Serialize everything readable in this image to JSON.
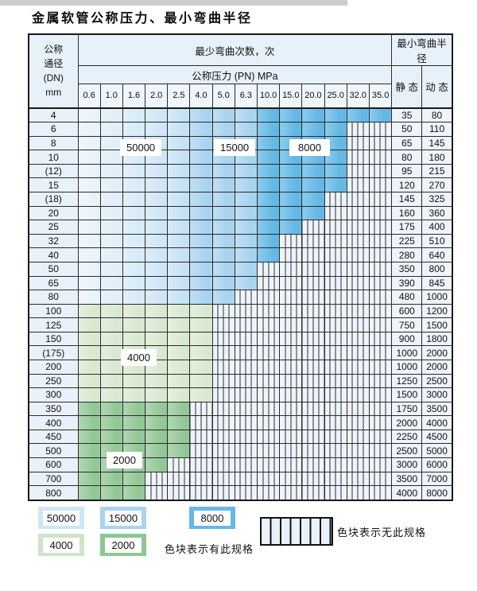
{
  "title": "金属软管公称压力、最小弯曲半径",
  "colors": {
    "blue50000_from": "#e9f3fb",
    "blue50000_to": "#c6e2f5",
    "blue15000": "#a8d4f0",
    "blue8000": "#63b8e6",
    "green4000": "#d9e9d1",
    "green2000": "#92c897",
    "hatch_bg": "#eef4fb",
    "header_bg": "#e7f1fa",
    "grid": "#2b2b2b"
  },
  "table": {
    "header": {
      "dn_label_lines": [
        "公称",
        "通径",
        "(DN)",
        "mm"
      ],
      "cycles_label": "最少弯曲次数，次",
      "pressure_label": "公称压力 (PN) MPa",
      "radius_label": "最小弯曲半径",
      "static_label": "静 态",
      "dynamic_label": "动 态",
      "pressures": [
        "0.6",
        "1.0",
        "1.6",
        "2.0",
        "2.5",
        "4.0",
        "5.0",
        "6.3",
        "10.0",
        "15.0",
        "20.0",
        "25.0",
        "32.0",
        "35.0"
      ]
    },
    "zone_columns": {
      "cycles_50000": [
        "0.6",
        "2.5"
      ],
      "cycles_15000": [
        "4.0",
        "6.3"
      ],
      "cycles_8000": [
        "10.0",
        "35.0"
      ]
    },
    "rows": [
      {
        "dn": "4",
        "max": "35.0",
        "palette": "blue",
        "static": "35",
        "dynamic": "80"
      },
      {
        "dn": "6",
        "max": "25.0",
        "palette": "blue",
        "static": "50",
        "dynamic": "110"
      },
      {
        "dn": "8",
        "max": "25.0",
        "palette": "blue",
        "static": "65",
        "dynamic": "145"
      },
      {
        "dn": "10",
        "max": "25.0",
        "palette": "blue",
        "static": "80",
        "dynamic": "180"
      },
      {
        "dn": "(12)",
        "max": "25.0",
        "palette": "blue",
        "static": "95",
        "dynamic": "215"
      },
      {
        "dn": "15",
        "max": "25.0",
        "palette": "blue",
        "static": "120",
        "dynamic": "270"
      },
      {
        "dn": "(18)",
        "max": "20.0",
        "palette": "blue",
        "static": "145",
        "dynamic": "325"
      },
      {
        "dn": "20",
        "max": "20.0",
        "palette": "blue",
        "static": "160",
        "dynamic": "360"
      },
      {
        "dn": "25",
        "max": "15.0",
        "palette": "blue",
        "static": "175",
        "dynamic": "400"
      },
      {
        "dn": "32",
        "max": "10.0",
        "palette": "blue",
        "static": "225",
        "dynamic": "510"
      },
      {
        "dn": "40",
        "max": "10.0",
        "palette": "blue",
        "static": "280",
        "dynamic": "640"
      },
      {
        "dn": "50",
        "max": "6.3",
        "palette": "blue",
        "static": "350",
        "dynamic": "800"
      },
      {
        "dn": "65",
        "max": "6.3",
        "palette": "blue",
        "static": "390",
        "dynamic": "845"
      },
      {
        "dn": "80",
        "max": "5.0",
        "palette": "blue",
        "static": "480",
        "dynamic": "1000"
      },
      {
        "dn": "100",
        "max": "4.0",
        "palette": "green4000",
        "static": "600",
        "dynamic": "1200"
      },
      {
        "dn": "125",
        "max": "4.0",
        "palette": "green4000",
        "static": "750",
        "dynamic": "1500"
      },
      {
        "dn": "150",
        "max": "4.0",
        "palette": "green4000",
        "static": "900",
        "dynamic": "1800"
      },
      {
        "dn": "(175)",
        "max": "4.0",
        "palette": "green4000",
        "static": "1000",
        "dynamic": "2000"
      },
      {
        "dn": "200",
        "max": "4.0",
        "palette": "green4000",
        "static": "1000",
        "dynamic": "2000"
      },
      {
        "dn": "250",
        "max": "4.0",
        "palette": "green4000",
        "static": "1250",
        "dynamic": "2500"
      },
      {
        "dn": "300",
        "max": "4.0",
        "palette": "green4000",
        "static": "1500",
        "dynamic": "3000"
      },
      {
        "dn": "350",
        "max": "2.5",
        "palette": "green2000",
        "static": "1750",
        "dynamic": "3500"
      },
      {
        "dn": "400",
        "max": "2.5",
        "palette": "green2000",
        "static": "2000",
        "dynamic": "4000"
      },
      {
        "dn": "450",
        "max": "2.5",
        "palette": "green2000",
        "static": "2250",
        "dynamic": "4500"
      },
      {
        "dn": "500",
        "max": "2.5",
        "palette": "green2000",
        "static": "2500",
        "dynamic": "5000"
      },
      {
        "dn": "600",
        "max": "2.0",
        "palette": "green2000",
        "static": "3000",
        "dynamic": "6000"
      },
      {
        "dn": "700",
        "max": "1.6",
        "palette": "green2000",
        "static": "3500",
        "dynamic": "7000"
      },
      {
        "dn": "800",
        "max": "1.6",
        "palette": "green2000",
        "static": "4000",
        "dynamic": "8000"
      }
    ]
  },
  "overlays": [
    {
      "text": "50000"
    },
    {
      "text": "15000"
    },
    {
      "text": "8000"
    },
    {
      "text": "4000"
    },
    {
      "text": "2000"
    }
  ],
  "legend": {
    "has_spec_label": "色块表示有此规格",
    "no_spec_label": "色块表示无此规格",
    "swatches": [
      {
        "value": "50000",
        "color": "#cfe6f6",
        "row": 1
      },
      {
        "value": "15000",
        "color": "#a9d4ef",
        "row": 1
      },
      {
        "value": "8000",
        "color": "#66b8e6",
        "row": 1
      },
      {
        "value": "4000",
        "color": "#cfe4c8",
        "row": 2
      },
      {
        "value": "2000",
        "color": "#8cc794",
        "row": 2
      }
    ]
  }
}
